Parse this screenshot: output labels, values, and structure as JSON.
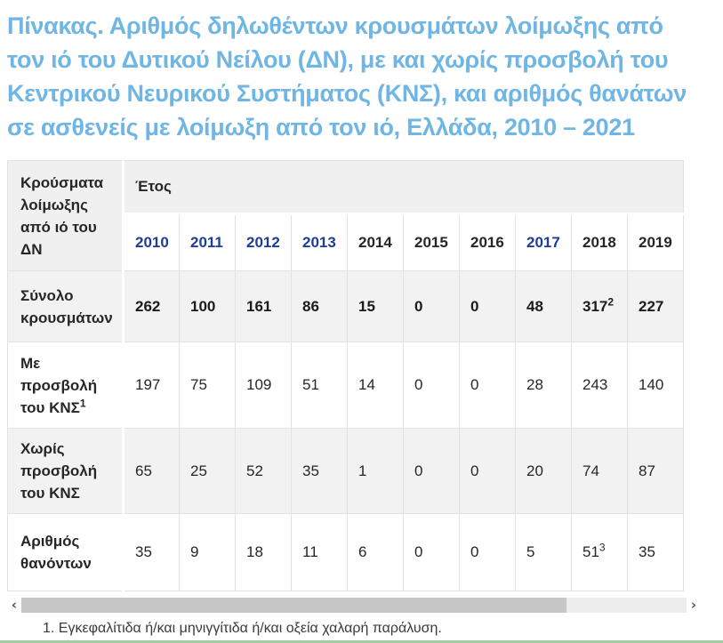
{
  "page": {
    "title": "Πίνακας. Αριθμός δηλωθέντων κρουσμάτων λοίμωξης από τον ιό του Δυτικού Νείλου (ΔΝ), με και χωρίς προσβολή του Κεντρικού Νευρικού Συστήματος (ΚΝΣ), και αριθμός θανάτων σε ασθενείς με λοίμωξη από τον ιό, Ελλάδα, 2010 – 2021",
    "footnote": "1. Εγκεφαλίτιδα ή/και μηνιγγίτιδα ή/και οξεία χαλαρή παράλυση."
  },
  "colors": {
    "title_blue": "#6fb6e4",
    "year_link_blue": "#1e3e96",
    "header_bg": "#f0f0f0",
    "zebra_bg": "#f2f2f2",
    "border": "#e2e2e2",
    "bottom_line_green": "#a5cba2",
    "scrollbar_track": "#ededed",
    "scrollbar_thumb": "#c6c6c6"
  },
  "scrollbar": {
    "left_arrow": "‹",
    "right_arrow": "›"
  },
  "table": {
    "corner_header": "Κρούσματα λοίμωξης από ιό του ΔΝ",
    "year_header": "Έτος",
    "years": [
      {
        "label": "2010",
        "link": true
      },
      {
        "label": "2011",
        "link": true
      },
      {
        "label": "2012",
        "link": true
      },
      {
        "label": "2013",
        "link": true
      },
      {
        "label": "2014",
        "link": false
      },
      {
        "label": "2015",
        "link": false
      },
      {
        "label": "2016",
        "link": false
      },
      {
        "label": "2017",
        "link": true
      },
      {
        "label": "2018",
        "link": false
      },
      {
        "label": "2019",
        "link": false
      }
    ],
    "rows": [
      {
        "label": "Σύνολο κρουσμάτων",
        "label_sup": "",
        "values": [
          {
            "v": "262",
            "sup": ""
          },
          {
            "v": "100",
            "sup": ""
          },
          {
            "v": "161",
            "sup": ""
          },
          {
            "v": "86",
            "sup": ""
          },
          {
            "v": "15",
            "sup": ""
          },
          {
            "v": "0",
            "sup": ""
          },
          {
            "v": "0",
            "sup": ""
          },
          {
            "v": "48",
            "sup": ""
          },
          {
            "v": "317",
            "sup": "2"
          },
          {
            "v": "227",
            "sup": ""
          }
        ]
      },
      {
        "label": "Με προσβολή του ΚΝΣ",
        "label_sup": "1",
        "values": [
          {
            "v": "197",
            "sup": ""
          },
          {
            "v": "75",
            "sup": ""
          },
          {
            "v": "109",
            "sup": ""
          },
          {
            "v": "51",
            "sup": ""
          },
          {
            "v": "14",
            "sup": ""
          },
          {
            "v": "0",
            "sup": ""
          },
          {
            "v": "0",
            "sup": ""
          },
          {
            "v": "28",
            "sup": ""
          },
          {
            "v": "243",
            "sup": ""
          },
          {
            "v": "140",
            "sup": ""
          }
        ]
      },
      {
        "label": "Χωρίς προσβολή του ΚΝΣ",
        "label_sup": "",
        "values": [
          {
            "v": "65",
            "sup": ""
          },
          {
            "v": "25",
            "sup": ""
          },
          {
            "v": "52",
            "sup": ""
          },
          {
            "v": "35",
            "sup": ""
          },
          {
            "v": "1",
            "sup": ""
          },
          {
            "v": "0",
            "sup": ""
          },
          {
            "v": "0",
            "sup": ""
          },
          {
            "v": "20",
            "sup": ""
          },
          {
            "v": "74",
            "sup": ""
          },
          {
            "v": "87",
            "sup": ""
          }
        ]
      },
      {
        "label": "Αριθμός θανόντων",
        "label_sup": "",
        "values": [
          {
            "v": "35",
            "sup": ""
          },
          {
            "v": "9",
            "sup": ""
          },
          {
            "v": "18",
            "sup": ""
          },
          {
            "v": "11",
            "sup": ""
          },
          {
            "v": "6",
            "sup": ""
          },
          {
            "v": "0",
            "sup": ""
          },
          {
            "v": "0",
            "sup": ""
          },
          {
            "v": "5",
            "sup": ""
          },
          {
            "v": "51",
            "sup": "3"
          },
          {
            "v": "35",
            "sup": ""
          }
        ]
      }
    ]
  },
  "chart_data": {
    "type": "table",
    "title": "Αριθμός δηλωθέντων κρουσμάτων λοίμωξης από τον ιό του Δυτικού Νείλου, Ελλάδα, 2010 – 2021",
    "columns": [
      "2010",
      "2011",
      "2012",
      "2013",
      "2014",
      "2015",
      "2016",
      "2017",
      "2018",
      "2019"
    ],
    "rows": [
      {
        "name": "Σύνολο κρουσμάτων",
        "values": [
          262,
          100,
          161,
          86,
          15,
          0,
          0,
          48,
          317,
          227
        ]
      },
      {
        "name": "Με προσβολή του ΚΝΣ",
        "values": [
          197,
          75,
          109,
          51,
          14,
          0,
          0,
          28,
          243,
          140
        ]
      },
      {
        "name": "Χωρίς προσβολή του ΚΝΣ",
        "values": [
          65,
          25,
          52,
          35,
          1,
          0,
          0,
          20,
          74,
          87
        ]
      },
      {
        "name": "Αριθμός θανόντων",
        "values": [
          35,
          9,
          18,
          11,
          6,
          0,
          0,
          5,
          51,
          35
        ]
      }
    ]
  }
}
